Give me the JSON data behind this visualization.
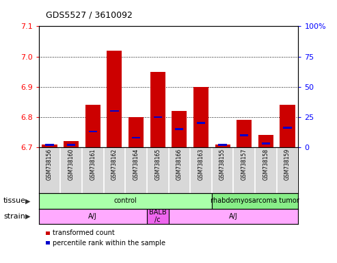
{
  "title": "GDS5527 / 3610092",
  "samples": [
    "GSM738156",
    "GSM738160",
    "GSM738161",
    "GSM738162",
    "GSM738164",
    "GSM738165",
    "GSM738166",
    "GSM738163",
    "GSM738155",
    "GSM738157",
    "GSM738158",
    "GSM738159"
  ],
  "transformed_count": [
    6.71,
    6.72,
    6.84,
    7.02,
    6.8,
    6.95,
    6.82,
    6.9,
    6.71,
    6.79,
    6.74,
    6.84
  ],
  "percentile_rank": [
    2,
    2,
    13,
    30,
    8,
    25,
    15,
    20,
    2,
    10,
    3,
    16
  ],
  "ylim_left": [
    6.7,
    7.1
  ],
  "ylim_right": [
    0,
    100
  ],
  "yticks_left": [
    6.7,
    6.8,
    6.9,
    7.0,
    7.1
  ],
  "yticks_right": [
    0,
    25,
    50,
    75,
    100
  ],
  "ytick_labels_right": [
    "0",
    "25",
    "50",
    "75",
    "100%"
  ],
  "base_value": 6.7,
  "bar_color": "#cc0000",
  "percentile_color": "#0000cc",
  "tissue_groups": [
    {
      "label": "control",
      "start": 0,
      "end": 7,
      "color": "#aaffaa"
    },
    {
      "label": "rhabdomyosarcoma tumor",
      "start": 8,
      "end": 11,
      "color": "#88ee88"
    }
  ],
  "strain_groups": [
    {
      "label": "A/J",
      "start": 0,
      "end": 4,
      "color": "#ffaaff"
    },
    {
      "label": "BALB\n/c",
      "start": 5,
      "end": 5,
      "color": "#ee66ee"
    },
    {
      "label": "A/J",
      "start": 6,
      "end": 11,
      "color": "#ffaaff"
    }
  ],
  "tissue_label": "tissue",
  "strain_label": "strain",
  "legend_items": [
    {
      "label": "transformed count",
      "color": "#cc0000"
    },
    {
      "label": "percentile rank within the sample",
      "color": "#0000cc"
    }
  ],
  "grid_linestyle": ":",
  "bar_width": 0.7,
  "sample_bg": "#d8d8d8",
  "border_color": "#000000"
}
